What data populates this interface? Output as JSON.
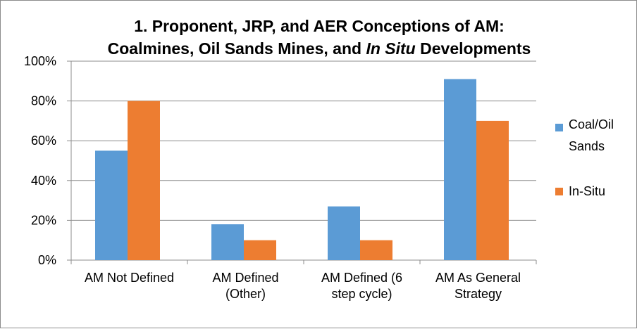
{
  "chart_data": {
    "type": "bar",
    "title": {
      "line1": "1. Proponent, JRP, and AER Conceptions of AM:",
      "line2_prefix": "Coalmines, Oil Sands Mines, and ",
      "line2_italic": "In Situ",
      "line2_suffix": " Developments"
    },
    "categories": [
      [
        "AM Not Defined"
      ],
      [
        "AM Defined",
        "(Other)"
      ],
      [
        "AM Defined (6",
        "step cycle)"
      ],
      [
        "AM As General",
        "Strategy"
      ]
    ],
    "series": [
      {
        "name_lines": [
          "Coal/Oil",
          "Sands"
        ],
        "color": "#5b9bd5",
        "values": [
          0.55,
          0.18,
          0.27,
          0.91
        ]
      },
      {
        "name_lines": [
          "In-Situ"
        ],
        "color": "#ed7d31",
        "values": [
          0.8,
          0.1,
          0.1,
          0.7
        ]
      }
    ],
    "ylim": [
      0,
      1
    ],
    "yticks": [
      {
        "value": 0,
        "label": "0%"
      },
      {
        "value": 0.2,
        "label": "20%"
      },
      {
        "value": 0.4,
        "label": "40%"
      },
      {
        "value": 0.6,
        "label": "60%"
      },
      {
        "value": 0.8,
        "label": "80%"
      },
      {
        "value": 1.0,
        "label": "100%"
      }
    ],
    "grid": true,
    "legend_position": "right"
  }
}
